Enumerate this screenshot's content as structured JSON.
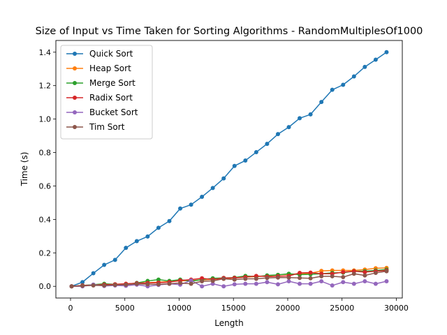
{
  "chart_data": {
    "type": "line",
    "title": "Size of Input vs Time Taken for Sorting Algorithms - RandomMultiplesOf1000",
    "xlabel": "Length",
    "ylabel": "Time (s)",
    "xlim": [
      -1350,
      30550
    ],
    "ylim": [
      -0.07,
      1.47
    ],
    "xticks": [
      0,
      5000,
      10000,
      15000,
      20000,
      25000,
      30000
    ],
    "yticks": [
      0.0,
      0.2,
      0.4,
      0.6,
      0.8,
      1.0,
      1.2,
      1.4
    ],
    "grid": false,
    "legend_position": "top-left",
    "x": [
      100,
      1100,
      2100,
      3100,
      4100,
      5100,
      6100,
      7100,
      8100,
      9100,
      10100,
      11100,
      12100,
      13100,
      14100,
      15100,
      16100,
      17100,
      18100,
      19100,
      20100,
      21100,
      22100,
      23100,
      24100,
      25100,
      26100,
      27100,
      28100,
      29100
    ],
    "series": [
      {
        "name": "Quick Sort",
        "color": "#1f77b4",
        "values": [
          0.0,
          0.025,
          0.078,
          0.128,
          0.158,
          0.23,
          0.27,
          0.298,
          0.35,
          0.39,
          0.465,
          0.488,
          0.535,
          0.588,
          0.645,
          0.72,
          0.752,
          0.802,
          0.852,
          0.91,
          0.952,
          1.005,
          1.028,
          1.102,
          1.175,
          1.205,
          1.255,
          1.312,
          1.355,
          1.4
        ]
      },
      {
        "name": "Heap Sort",
        "color": "#ff7f0e",
        "values": [
          0.0,
          0.004,
          0.008,
          0.012,
          0.012,
          0.015,
          0.018,
          0.022,
          0.025,
          0.028,
          0.032,
          0.035,
          0.038,
          0.042,
          0.045,
          0.05,
          0.055,
          0.058,
          0.062,
          0.068,
          0.072,
          0.075,
          0.078,
          0.092,
          0.095,
          0.095,
          0.095,
          0.1,
          0.108,
          0.11
        ]
      },
      {
        "name": "Merge Sort",
        "color": "#2ca02c",
        "values": [
          0.0,
          0.005,
          0.01,
          0.015,
          0.012,
          0.012,
          0.02,
          0.032,
          0.04,
          0.032,
          0.04,
          0.03,
          0.04,
          0.048,
          0.05,
          0.052,
          0.062,
          0.058,
          0.065,
          0.068,
          0.075,
          0.07,
          0.072,
          0.075,
          0.08,
          0.082,
          0.09,
          0.09,
          0.095,
          0.1
        ]
      },
      {
        "name": "Radix Sort",
        "color": "#d62728",
        "values": [
          0.0,
          0.005,
          0.008,
          0.01,
          0.012,
          0.015,
          0.018,
          0.02,
          0.022,
          0.025,
          0.035,
          0.04,
          0.048,
          0.04,
          0.05,
          0.05,
          0.055,
          0.062,
          0.058,
          0.06,
          0.062,
          0.08,
          0.082,
          0.075,
          0.075,
          0.085,
          0.09,
          0.085,
          0.09,
          0.095
        ]
      },
      {
        "name": "Bucket Sort",
        "color": "#9467bd",
        "values": [
          0.0,
          0.0,
          0.01,
          0.002,
          0.005,
          0.003,
          0.01,
          0.0,
          0.008,
          0.015,
          0.01,
          0.035,
          0.0,
          0.015,
          0.0,
          0.012,
          0.015,
          0.015,
          0.025,
          0.012,
          0.03,
          0.015,
          0.015,
          0.03,
          0.005,
          0.025,
          0.015,
          0.03,
          0.015,
          0.03
        ]
      },
      {
        "name": "Tim Sort",
        "color": "#8c564b",
        "values": [
          0.0,
          0.003,
          0.005,
          0.005,
          0.008,
          0.01,
          0.015,
          0.012,
          0.012,
          0.015,
          0.02,
          0.015,
          0.03,
          0.032,
          0.045,
          0.04,
          0.045,
          0.045,
          0.05,
          0.052,
          0.052,
          0.05,
          0.048,
          0.06,
          0.06,
          0.055,
          0.075,
          0.065,
          0.08,
          0.09
        ]
      }
    ]
  }
}
